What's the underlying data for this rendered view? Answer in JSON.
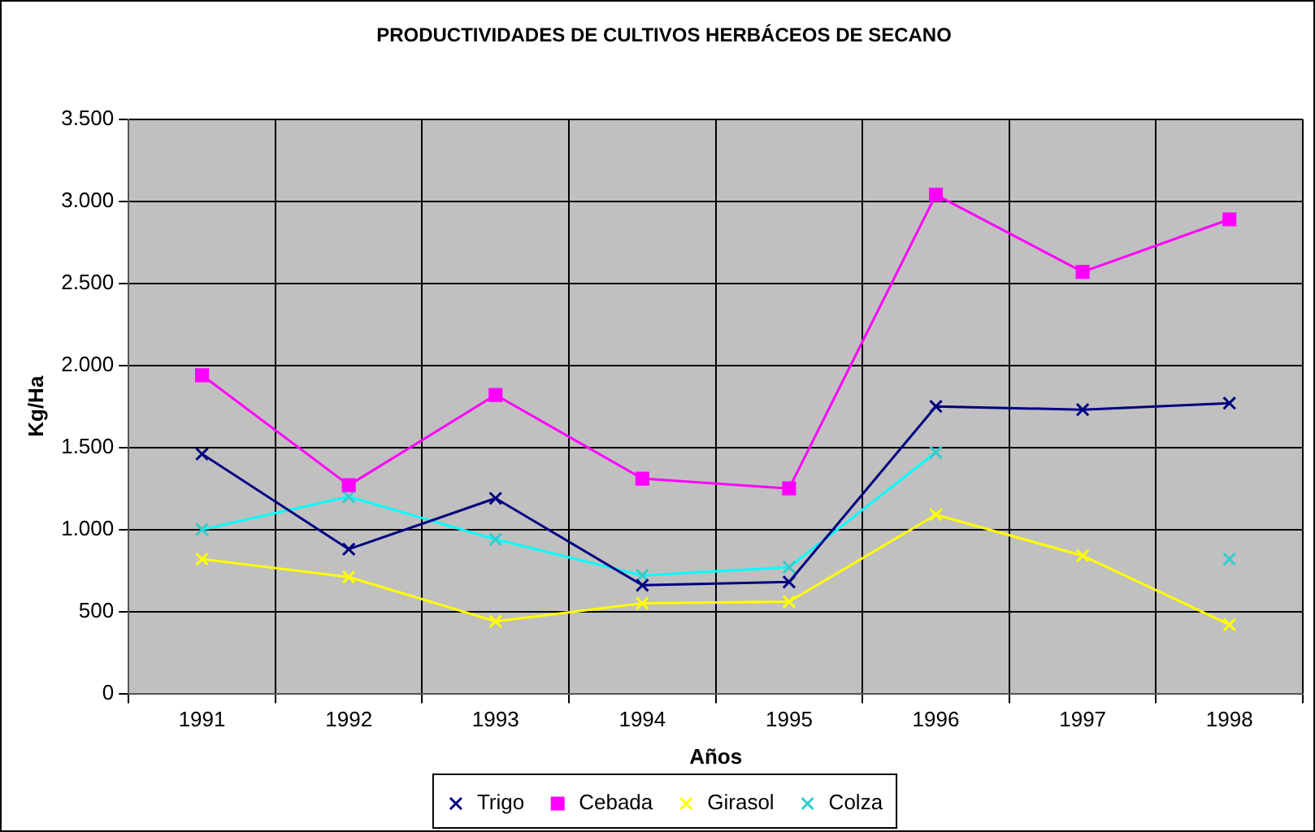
{
  "chart_data": {
    "type": "line",
    "title": "PRODUCTIVIDADES DE CULTIVOS HERBÁCEOS DE SECANO",
    "xlabel": "Años",
    "ylabel": "Kg/Ha",
    "categories": [
      "1991",
      "1992",
      "1993",
      "1994",
      "1995",
      "1996",
      "1997",
      "1998"
    ],
    "series": [
      {
        "name": "Trigo",
        "color": "#000080",
        "marker": "cross",
        "values": [
          1460,
          880,
          1190,
          660,
          680,
          1750,
          1730,
          1770
        ]
      },
      {
        "name": "Cebada",
        "color": "#ff00ff",
        "marker": "square",
        "values": [
          1940,
          1270,
          1820,
          1310,
          1250,
          3040,
          2570,
          2890
        ]
      },
      {
        "name": "Girasol",
        "color": "#ffff00",
        "marker": "cross",
        "values": [
          820,
          710,
          440,
          550,
          560,
          1090,
          840,
          420
        ]
      },
      {
        "name": "Colza",
        "color": "#00ffff",
        "marker": "cross",
        "colors": [
          "#33cccc",
          "#33cccc",
          "#33cccc",
          "#33cccc",
          "#33cccc",
          "#33cccc",
          "#33cccc",
          "#33cccc"
        ],
        "values": [
          1000,
          1200,
          940,
          720,
          770,
          1470,
          null,
          820
        ]
      }
    ],
    "ylim": [
      0,
      3500
    ],
    "yticks": [
      0,
      500,
      {
        "value": 1000,
        "label": "1.000"
      },
      {
        "value": 1500,
        "label": "1.500"
      },
      {
        "value": 2000,
        "label": "2.000"
      },
      {
        "value": 2500,
        "label": "2.500"
      },
      {
        "value": 3000,
        "label": "3.000"
      },
      {
        "value": 3500,
        "label": "3.500"
      }
    ],
    "grid": true,
    "legend": "bottom",
    "line_style": "solid"
  }
}
